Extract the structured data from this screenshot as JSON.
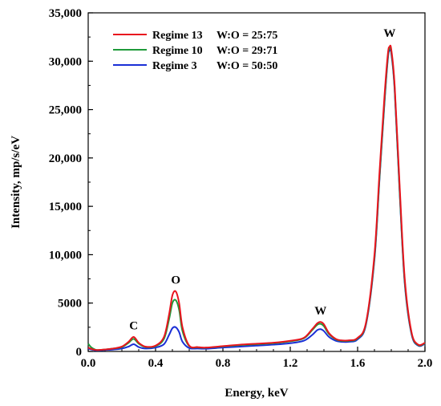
{
  "chart_data": {
    "type": "line",
    "title": "",
    "xlabel": "Energy, keV",
    "ylabel": "Intensity, mp/s/eV",
    "xlim": [
      0,
      2.0
    ],
    "ylim": [
      0,
      35000
    ],
    "x_ticks": [
      0.0,
      0.4,
      0.8,
      1.2,
      1.6,
      2.0
    ],
    "x_tick_labels": [
      "0.0",
      "0.4",
      "0.8",
      "1.2",
      "1.6",
      "2.0"
    ],
    "y_ticks": [
      0,
      5000,
      10000,
      15000,
      20000,
      25000,
      30000,
      35000
    ],
    "y_tick_labels": [
      "0",
      "5000",
      "10,000",
      "15,000",
      "20,000",
      "25,000",
      "30,000",
      "35,000"
    ],
    "grid": false,
    "legend_position": "top-left",
    "series": [
      {
        "name": "Regime 13",
        "ratio_label": "W:O = 25:75",
        "color": "#e8141e",
        "x": [
          0.0,
          0.02,
          0.05,
          0.1,
          0.15,
          0.2,
          0.24,
          0.27,
          0.3,
          0.34,
          0.4,
          0.45,
          0.48,
          0.5,
          0.52,
          0.54,
          0.56,
          0.6,
          0.65,
          0.7,
          0.8,
          0.9,
          1.0,
          1.1,
          1.2,
          1.28,
          1.33,
          1.36,
          1.38,
          1.4,
          1.43,
          1.47,
          1.5,
          1.55,
          1.6,
          1.65,
          1.7,
          1.73,
          1.76,
          1.78,
          1.79,
          1.8,
          1.82,
          1.85,
          1.88,
          1.92,
          1.96,
          2.0
        ],
        "y": [
          400,
          250,
          150,
          200,
          300,
          500,
          1000,
          1500,
          900,
          500,
          600,
          1500,
          3800,
          5800,
          6200,
          5000,
          2500,
          600,
          450,
          400,
          550,
          700,
          800,
          900,
          1100,
          1400,
          2300,
          2900,
          3050,
          2800,
          1900,
          1300,
          1150,
          1150,
          1400,
          3000,
          10000,
          18500,
          26500,
          30800,
          31500,
          31200,
          27500,
          17000,
          7500,
          2000,
          700,
          900
        ]
      },
      {
        "name": "Regime 10",
        "ratio_label": "W:O = 29:71",
        "color": "#1f9a3a",
        "x": [
          0.0,
          0.02,
          0.05,
          0.1,
          0.15,
          0.2,
          0.24,
          0.27,
          0.3,
          0.34,
          0.4,
          0.45,
          0.48,
          0.5,
          0.52,
          0.54,
          0.56,
          0.6,
          0.65,
          0.7,
          0.8,
          0.9,
          1.0,
          1.1,
          1.2,
          1.28,
          1.33,
          1.36,
          1.38,
          1.4,
          1.43,
          1.47,
          1.5,
          1.55,
          1.6,
          1.65,
          1.7,
          1.73,
          1.76,
          1.78,
          1.79,
          1.8,
          1.82,
          1.85,
          1.88,
          1.92,
          1.96,
          2.0
        ],
        "y": [
          800,
          400,
          150,
          200,
          300,
          450,
          900,
          1300,
          800,
          450,
          550,
          1300,
          3300,
          5000,
          5300,
          4300,
          2100,
          550,
          420,
          380,
          520,
          650,
          750,
          850,
          1050,
          1350,
          2200,
          2750,
          2850,
          2600,
          1800,
          1250,
          1100,
          1100,
          1350,
          2900,
          9700,
          18000,
          26000,
          30500,
          31300,
          31000,
          27200,
          16500,
          7200,
          1900,
          650,
          850
        ]
      },
      {
        "name": "Regime 3",
        "ratio_label": "W:O = 50:50",
        "color": "#1a2fd6",
        "x": [
          0.0,
          0.02,
          0.05,
          0.1,
          0.15,
          0.2,
          0.24,
          0.27,
          0.3,
          0.34,
          0.4,
          0.45,
          0.48,
          0.5,
          0.52,
          0.54,
          0.56,
          0.6,
          0.65,
          0.7,
          0.8,
          0.9,
          1.0,
          1.1,
          1.2,
          1.28,
          1.33,
          1.36,
          1.38,
          1.4,
          1.43,
          1.47,
          1.5,
          1.55,
          1.6,
          1.65,
          1.7,
          1.73,
          1.76,
          1.78,
          1.79,
          1.8,
          1.82,
          1.85,
          1.88,
          1.92,
          1.96,
          2.0
        ],
        "y": [
          300,
          200,
          100,
          150,
          200,
          300,
          500,
          750,
          450,
          300,
          400,
          750,
          1700,
          2400,
          2500,
          2000,
          1000,
          350,
          300,
          280,
          400,
          500,
          600,
          700,
          850,
          1100,
          1700,
          2200,
          2300,
          2100,
          1500,
          1100,
          1000,
          1000,
          1250,
          2800,
          9500,
          17800,
          25800,
          30300,
          31100,
          30800,
          27000,
          16300,
          7000,
          1800,
          600,
          800
        ]
      }
    ],
    "annotations": [
      {
        "text": "C",
        "x": 0.27,
        "y": 2300
      },
      {
        "text": "O",
        "x": 0.52,
        "y": 7000
      },
      {
        "text": "W",
        "x": 1.38,
        "y": 3800
      },
      {
        "text": "W",
        "x": 1.79,
        "y": 32500
      }
    ]
  }
}
